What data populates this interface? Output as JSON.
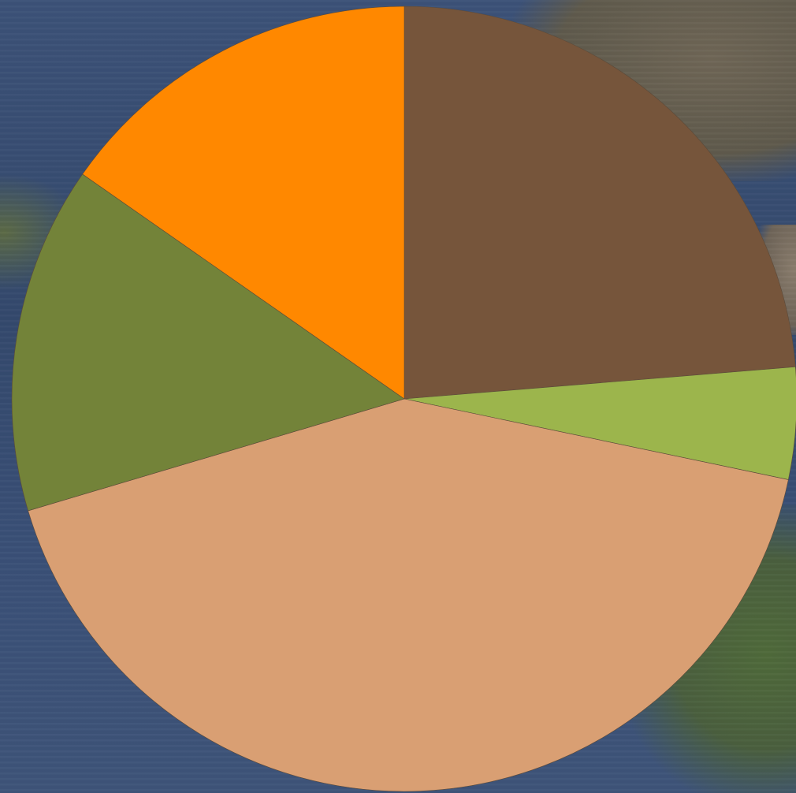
{
  "chart_data": {
    "type": "pie",
    "title": "",
    "start_angle_deg": 0,
    "direction": "clockwise",
    "slices": [
      {
        "value": 23.7,
        "color": "#76553b"
      },
      {
        "value": 4.6,
        "color": "#9cb54c"
      },
      {
        "value": 42.1,
        "color": "#d99f73"
      },
      {
        "value": 14.3,
        "color": "#738339"
      },
      {
        "value": 15.3,
        "color": "#ff8800"
      }
    ]
  }
}
